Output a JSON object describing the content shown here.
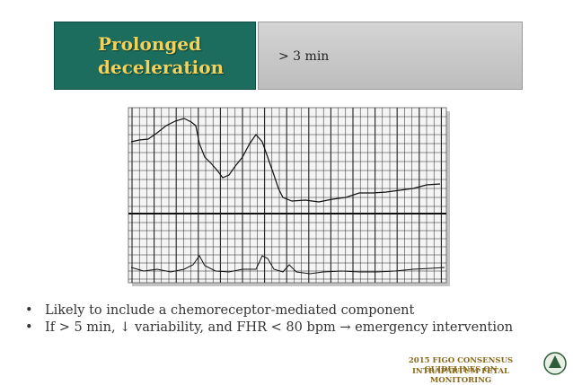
{
  "header": {
    "title_lines": [
      "Prolonged",
      "deceleration"
    ],
    "definition": "> 3 min"
  },
  "bullets": [
    "Likely to include a chemoreceptor-mediated component",
    "If > 5 min, ↓ variability, and FHR < 80 bpm → emergency intervention"
  ],
  "footer": {
    "lines": [
      "2015 FIGO CONSENSUS GUIDELINES ON",
      "INTRAPARTUM FETAL MONITORING"
    ]
  }
}
